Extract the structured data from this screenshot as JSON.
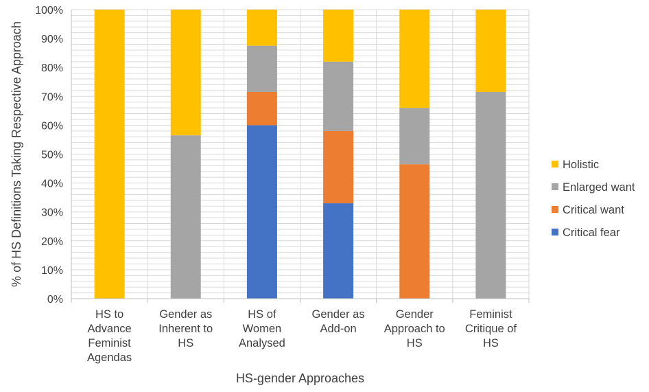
{
  "chart_data": {
    "type": "bar",
    "stacked": true,
    "categories": [
      "HS to Advance Feminist Agendas",
      "Gender as Inherent to HS",
      "HS of Women Analysed",
      "Gender as Add-on",
      "Gender Approach to HS",
      "Feminist Critique of HS"
    ],
    "category_lines": [
      [
        "HS to",
        "Advance",
        "Feminist",
        "Agendas"
      ],
      [
        "Gender as",
        "Inherent to",
        "HS"
      ],
      [
        "HS of",
        "Women",
        "Analysed"
      ],
      [
        "Gender as",
        "Add-on"
      ],
      [
        "Gender",
        "Approach to",
        "HS"
      ],
      [
        "Feminist",
        "Critique of",
        "HS"
      ]
    ],
    "series": [
      {
        "name": "Critical fear",
        "color": "#4472C4",
        "values": [
          0,
          0,
          60,
          33,
          0,
          0
        ]
      },
      {
        "name": "Critical want",
        "color": "#ED7D31",
        "values": [
          0,
          0,
          11.5,
          25,
          46.5,
          0
        ]
      },
      {
        "name": "Enlarged want",
        "color": "#A5A5A5",
        "values": [
          0,
          56.5,
          16,
          24,
          19.5,
          71.5
        ]
      },
      {
        "name": "Holistic",
        "color": "#FFC000",
        "values": [
          100,
          43.5,
          12.5,
          18,
          34,
          28.5
        ]
      }
    ],
    "yticks": [
      "0%",
      "10%",
      "20%",
      "30%",
      "40%",
      "50%",
      "60%",
      "70%",
      "80%",
      "90%",
      "100%"
    ],
    "ylim": [
      0,
      100
    ],
    "xlabel": "HS-gender Approaches",
    "ylabel": "% of HS Definitions Taking Respective Approach",
    "grid": true,
    "legend_position": "right"
  }
}
